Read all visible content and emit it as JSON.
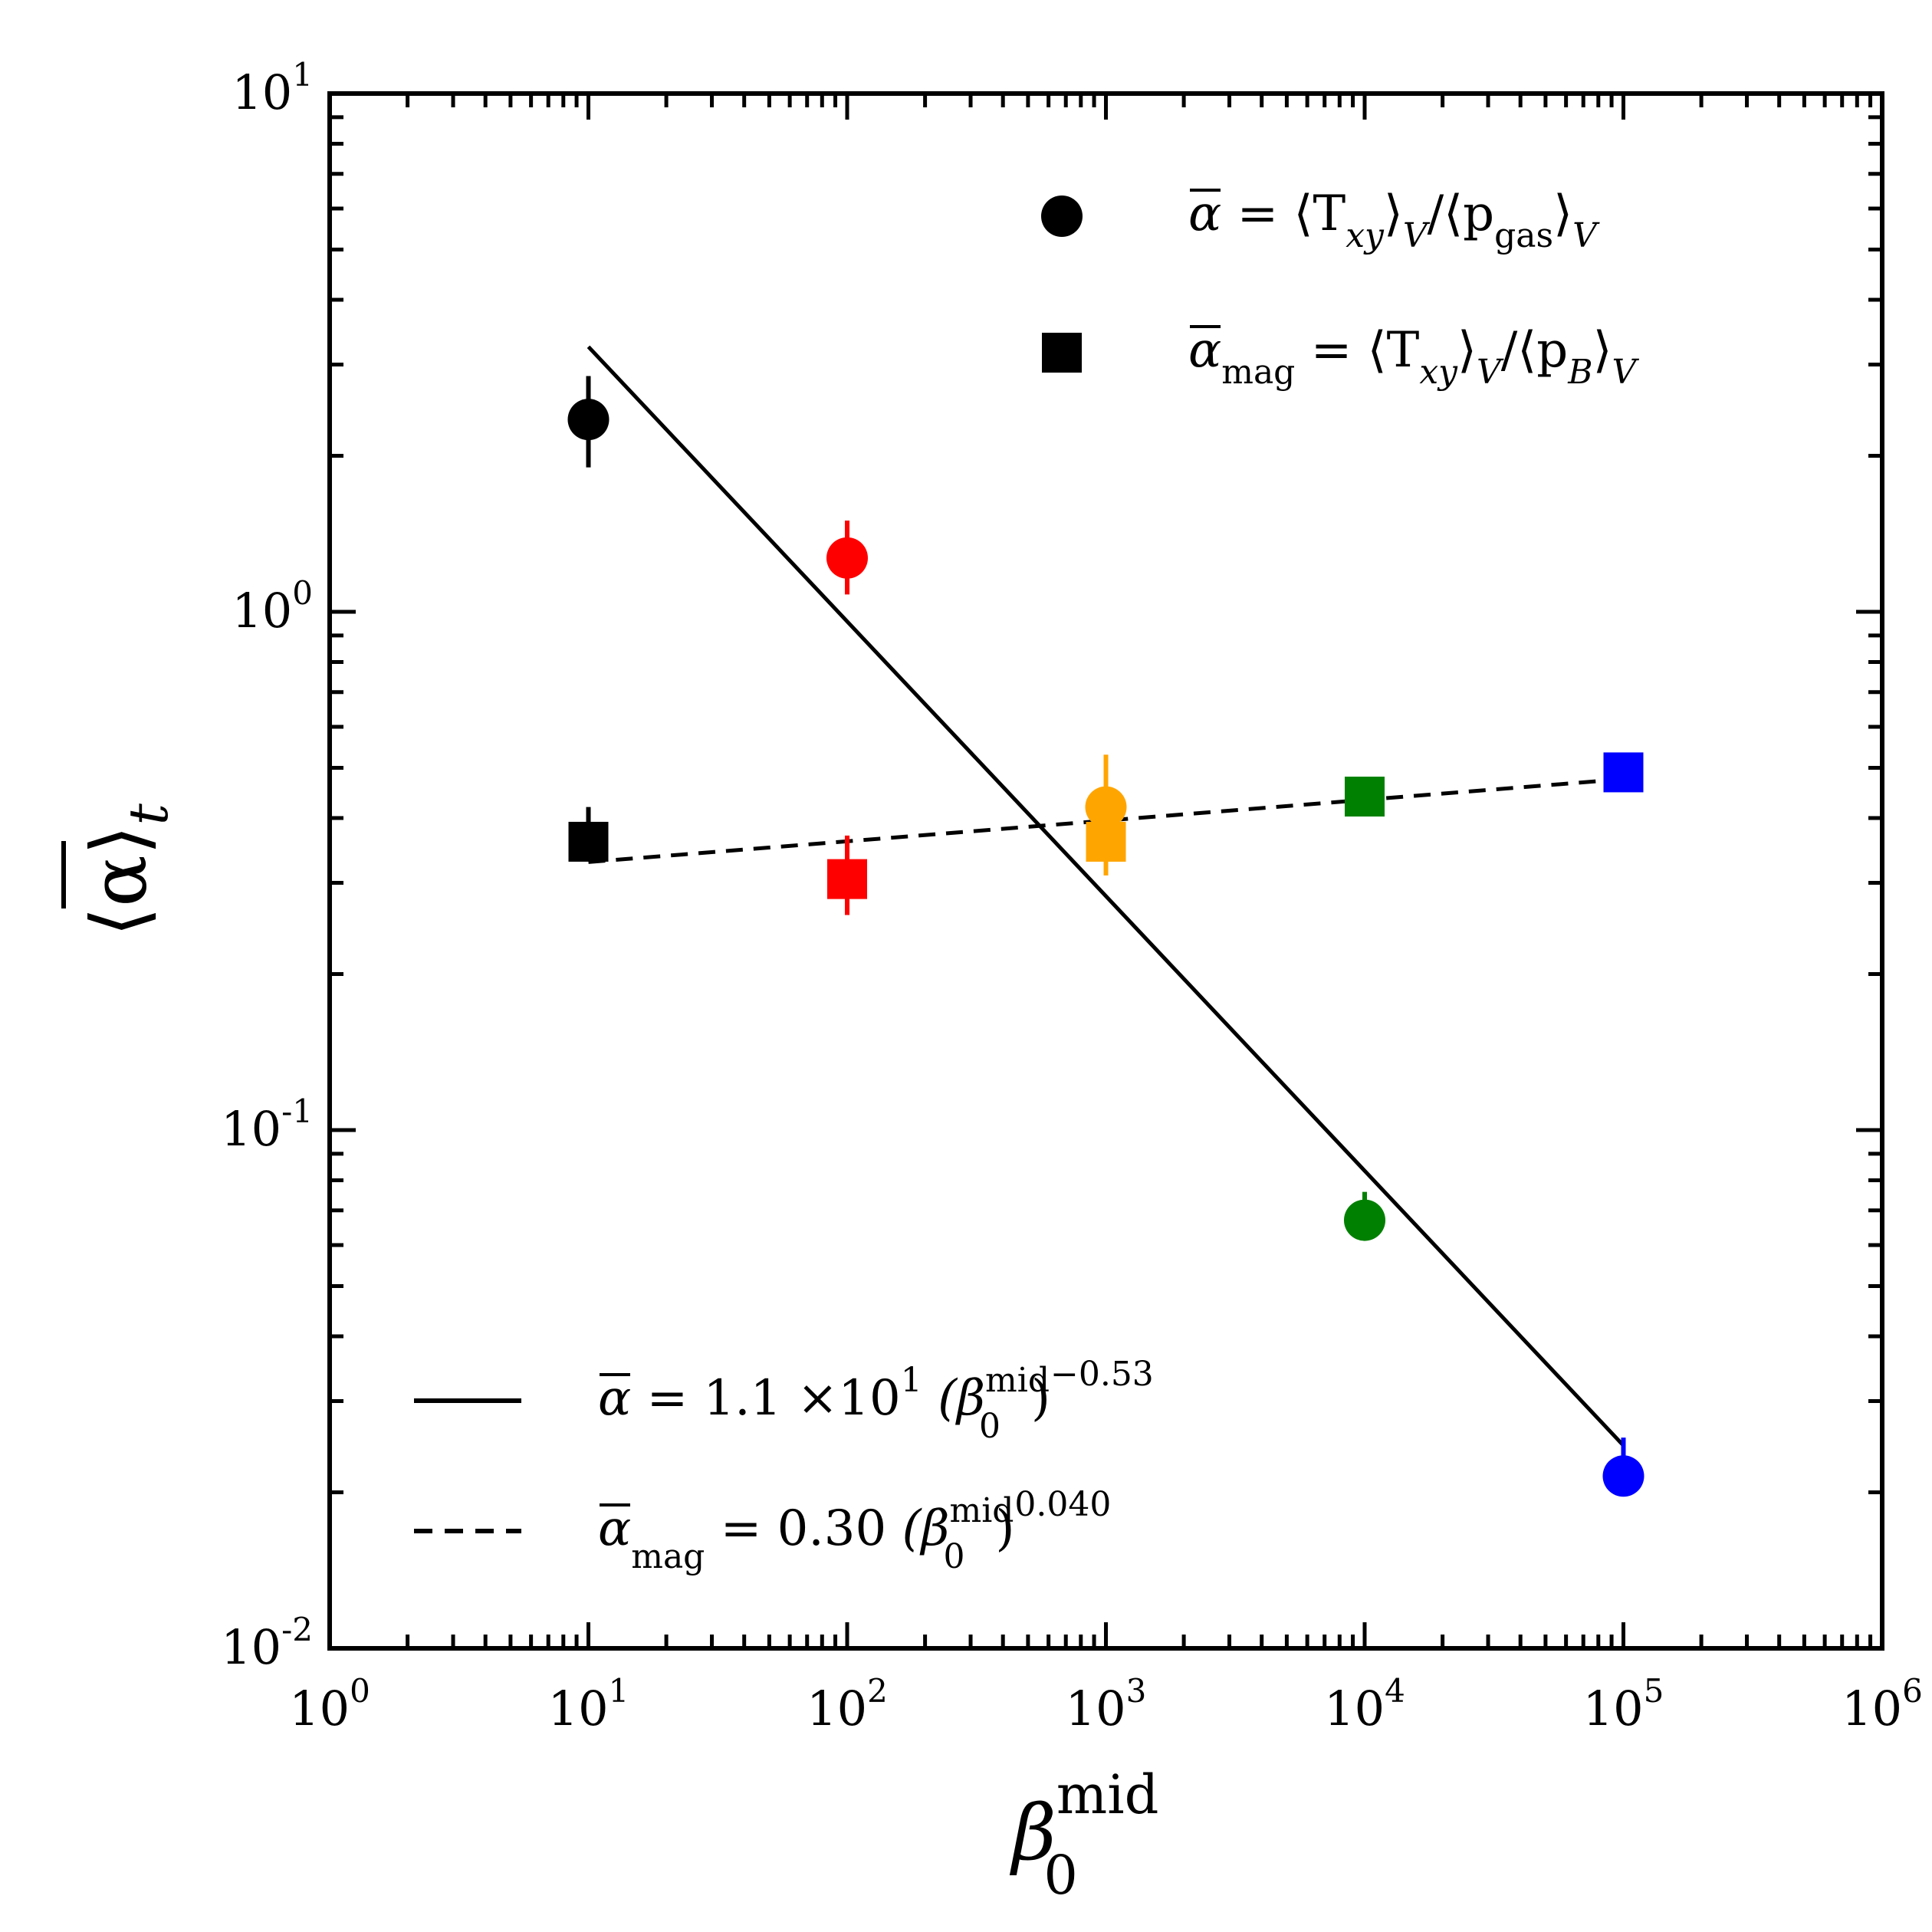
{
  "chart_data": {
    "type": "scatter",
    "xscale": "log",
    "yscale": "log",
    "xlim": [
      1,
      1000000
    ],
    "ylim": [
      0.01,
      10
    ],
    "xticks": [
      {
        "base": "10",
        "exp": "0"
      },
      {
        "base": "10",
        "exp": "1"
      },
      {
        "base": "10",
        "exp": "2"
      },
      {
        "base": "10",
        "exp": "3"
      },
      {
        "base": "10",
        "exp": "4"
      },
      {
        "base": "10",
        "exp": "5"
      },
      {
        "base": "10",
        "exp": "6"
      }
    ],
    "yticks": [
      {
        "base": "10",
        "exp": "-2"
      },
      {
        "base": "10",
        "exp": "-1"
      },
      {
        "base": "10",
        "exp": "0"
      },
      {
        "base": "10",
        "exp": "1"
      }
    ],
    "xlabel": {
      "main": "β",
      "sub": "0",
      "sup": "mid"
    },
    "ylabel": {
      "main": "⟨α⟩",
      "sub": "t"
    },
    "series": [
      {
        "name": "alpha",
        "marker": "circle",
        "legend": {
          "main": "α",
          "eq": " = ⟨T",
          "sub1": "xy",
          "mid1": "⟩",
          "sub2": "V",
          "mid2": "/⟨p",
          "sub3": "gas",
          "mid3": "⟩",
          "sub4": "V"
        },
        "points": [
          {
            "x": 10,
            "y": 2.35,
            "err_lo": 1.9,
            "err_hi": 2.85,
            "color": "#000000"
          },
          {
            "x": 100,
            "y": 1.27,
            "err_lo": 1.08,
            "err_hi": 1.5,
            "color": "#ff0000"
          },
          {
            "x": 1000,
            "y": 0.42,
            "err_lo": 0.35,
            "err_hi": 0.53,
            "color": "#ffa500"
          },
          {
            "x": 10000,
            "y": 0.067,
            "err_lo": 0.062,
            "err_hi": 0.076,
            "color": "#008000"
          },
          {
            "x": 100000,
            "y": 0.0215,
            "err_lo": 0.0205,
            "err_hi": 0.0255,
            "color": "#0000ff"
          }
        ]
      },
      {
        "name": "alpha_mag",
        "marker": "square",
        "legend": {
          "main": "α",
          "sub0": "mag",
          "eq": " = ⟨T",
          "sub1": "xy",
          "mid1": "⟩",
          "sub2": "V",
          "mid2": "/⟨p",
          "sub3": "B",
          "mid3": "⟩",
          "sub4": "V"
        },
        "points": [
          {
            "x": 10,
            "y": 0.36,
            "err_lo": 0.33,
            "err_hi": 0.42,
            "color": "#000000"
          },
          {
            "x": 100,
            "y": 0.305,
            "err_lo": 0.26,
            "err_hi": 0.37,
            "color": "#ff0000"
          },
          {
            "x": 1000,
            "y": 0.36,
            "err_lo": 0.31,
            "err_hi": 0.41,
            "color": "#ffa500"
          },
          {
            "x": 10000,
            "y": 0.44,
            "err_lo": 0.43,
            "err_hi": 0.45,
            "color": "#008000"
          },
          {
            "x": 100000,
            "y": 0.49,
            "err_lo": 0.48,
            "err_hi": 0.5,
            "color": "#0000ff"
          }
        ]
      }
    ],
    "fits": [
      {
        "name": "fit-alpha",
        "style": "solid",
        "coef": 11,
        "power": -0.53,
        "x_range": [
          10,
          100000
        ],
        "label": {
          "lhs": "α",
          "lhs_sub": "",
          "rhs": " = 1.1 ×10",
          "rhs_exp": "1",
          "paren": "  (β",
          "b_sub": "0",
          "b_sup": "mid",
          "close": ")",
          "power": "−0.53"
        }
      },
      {
        "name": "fit-alpha-mag",
        "style": "dashed",
        "coef": 0.3,
        "power": 0.04,
        "x_range": [
          10,
          100000
        ],
        "label": {
          "lhs": "α",
          "lhs_sub": "mag",
          "rhs": " = 0.30 ",
          "rhs_exp": "",
          "paren": "(β",
          "b_sub": "0",
          "b_sup": "mid",
          "close": ")",
          "power": "0.040"
        }
      }
    ]
  }
}
